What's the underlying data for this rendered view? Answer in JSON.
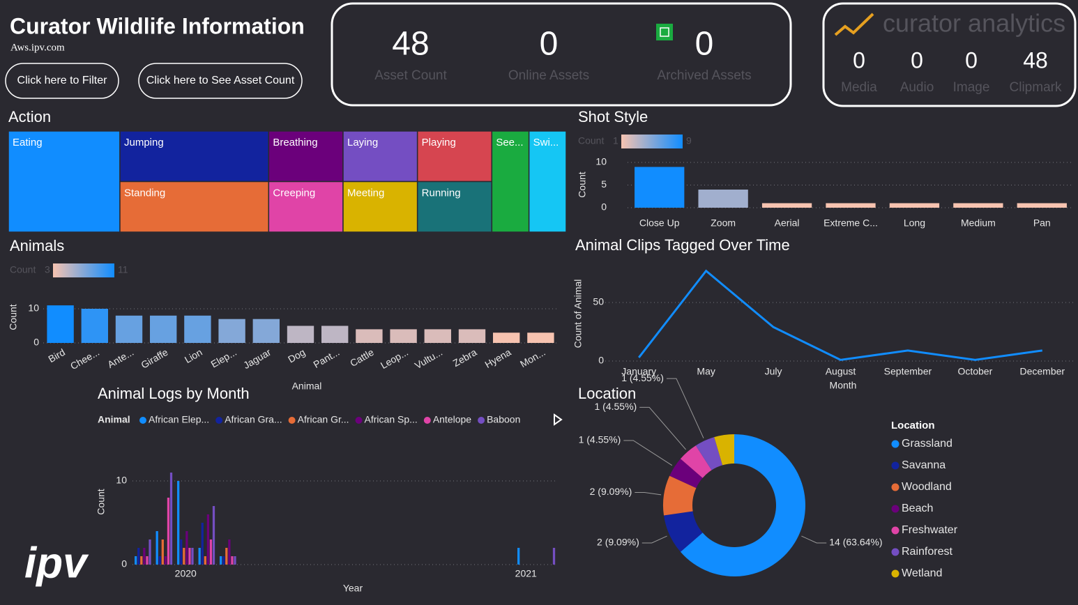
{
  "header": {
    "title": "Curator Wildlife Information",
    "subtitle": "Aws.ipv.com",
    "buttons": [
      "Click here to Filter",
      "Click here to See Asset Count"
    ],
    "logo": "ipv"
  },
  "kpis": [
    {
      "value": 48,
      "label": "Asset Count"
    },
    {
      "value": 0,
      "label": "Online Assets"
    },
    {
      "value": 0,
      "label": "Archived Assets"
    }
  ],
  "analytics": {
    "brand": "curator analytics",
    "items": [
      {
        "value": 0,
        "label": "Media"
      },
      {
        "value": 0,
        "label": "Audio"
      },
      {
        "value": 0,
        "label": "Image"
      },
      {
        "value": 48,
        "label": "Clipmark"
      }
    ]
  },
  "chart_data": [
    {
      "type": "treemap",
      "title": "Action",
      "categories": [
        "Eating",
        "Jumping",
        "Standing",
        "Breathing",
        "Creeping",
        "Laying",
        "Meeting",
        "Playing",
        "Running",
        "See...",
        "Swi..."
      ],
      "values": [
        6,
        4,
        4,
        2,
        2,
        2,
        2,
        2,
        2,
        2,
        2
      ],
      "colors": [
        "#118dff",
        "#12239e",
        "#e66c37",
        "#6b007b",
        "#e044a7",
        "#744ec2",
        "#d9b300",
        "#d64550",
        "#197278",
        "#1aab40",
        "#15c6f4"
      ]
    },
    {
      "type": "bar",
      "title": "Shot Style",
      "categories": [
        "Close Up",
        "Zoom",
        "Aerial",
        "Extreme C...",
        "Long",
        "Medium",
        "Pan"
      ],
      "values": [
        9,
        4,
        1,
        1,
        1,
        1,
        1
      ],
      "y_label": "Count",
      "ylim": [
        0,
        10
      ],
      "yticks": [
        0,
        5,
        10
      ],
      "grid": true,
      "color_scale": {
        "label": "Count",
        "min": 1,
        "max": 9,
        "colors": [
          "#f7c3b0",
          "#118dff"
        ]
      }
    },
    {
      "type": "bar",
      "title": "Animals",
      "categories": [
        "Bird",
        "Chee...",
        "Ante...",
        "Giraffe",
        "Lion",
        "Elep...",
        "Jaguar",
        "Dog",
        "Pant...",
        "Cattle",
        "Leop...",
        "Vultu...",
        "Zebra",
        "Hyena",
        "Mon..."
      ],
      "values": [
        11,
        10,
        8,
        8,
        8,
        7,
        7,
        5,
        5,
        4,
        4,
        4,
        4,
        3,
        3
      ],
      "x_label": "Animal",
      "y_label": "Count",
      "ylim": [
        0,
        11
      ],
      "yticks": [
        0,
        10
      ],
      "grid": true,
      "color_scale": {
        "label": "Count",
        "min": 3,
        "max": 11,
        "colors": [
          "#f7c3b0",
          "#118dff"
        ]
      }
    },
    {
      "type": "line",
      "title": "Animal Clips Tagged Over Time",
      "categories": [
        "January",
        "May",
        "July",
        "August",
        "September",
        "October",
        "December"
      ],
      "values": [
        3,
        77,
        29,
        1,
        9,
        1,
        9
      ],
      "color": "#118dff",
      "x_label": "Month",
      "y_label": "Count of Animal",
      "ylim": [
        0,
        80
      ],
      "yticks": [
        0,
        50
      ],
      "grid": true
    },
    {
      "type": "grouped_bar",
      "title": "Animal Logs by Month",
      "legend_title": "Animal",
      "categories": [
        null,
        null,
        "2020",
        null,
        null,
        null,
        null,
        null,
        null,
        null,
        null,
        null,
        null,
        null,
        null,
        null,
        null,
        null,
        "2021",
        null
      ],
      "series": [
        {
          "name": "African Elep...",
          "color": "#118dff",
          "values": [
            1,
            4,
            10,
            2,
            1,
            null,
            null,
            null,
            null,
            null,
            null,
            null,
            null,
            null,
            null,
            null,
            null,
            null,
            2,
            null
          ]
        },
        {
          "name": "African Gra...",
          "color": "#12239e",
          "values": [
            2,
            1,
            3,
            5,
            1,
            null,
            null,
            null,
            null,
            null,
            null,
            null,
            null,
            null,
            null,
            null,
            null,
            null,
            null,
            null
          ]
        },
        {
          "name": "African Gr...",
          "color": "#e66c37",
          "values": [
            1,
            3,
            2,
            1,
            2,
            null,
            null,
            null,
            null,
            null,
            null,
            null,
            null,
            null,
            null,
            null,
            null,
            null,
            null,
            null
          ]
        },
        {
          "name": "African Sp...",
          "color": "#6b007b",
          "values": [
            2,
            1,
            4,
            6,
            3,
            null,
            null,
            null,
            null,
            null,
            null,
            null,
            null,
            null,
            null,
            null,
            null,
            null,
            null,
            null
          ]
        },
        {
          "name": "Antelope",
          "color": "#e044a7",
          "values": [
            1,
            8,
            2,
            3,
            1,
            null,
            null,
            null,
            null,
            null,
            null,
            null,
            null,
            null,
            null,
            null,
            null,
            null,
            null,
            null
          ]
        },
        {
          "name": "Baboon",
          "color": "#744ec2",
          "values": [
            3,
            11,
            2,
            7,
            1,
            null,
            null,
            null,
            null,
            null,
            null,
            null,
            null,
            null,
            null,
            null,
            null,
            null,
            null,
            2
          ]
        }
      ],
      "x_label": "Year",
      "y_label": "Count",
      "ylim": [
        0,
        11
      ],
      "yticks": [
        0,
        10
      ],
      "grid": true
    },
    {
      "type": "donut",
      "title": "Location",
      "legend_title": "Location",
      "categories": [
        "Grassland",
        "Savanna",
        "Woodland",
        "Beach",
        "Freshwater",
        "Rainforest",
        "Wetland"
      ],
      "values": [
        14,
        2,
        2,
        1,
        1,
        1,
        1
      ],
      "value_labels": [
        "14 (63.64%)",
        "2 (9.09%)",
        "2 (9.09%)",
        "1 (4.55%)",
        "1 (4.55%)",
        "1 (4.55%)",
        null
      ],
      "colors": [
        "#118dff",
        "#12239e",
        "#e66c37",
        "#6b007b",
        "#e044a7",
        "#744ec2",
        "#d9b300"
      ]
    }
  ]
}
